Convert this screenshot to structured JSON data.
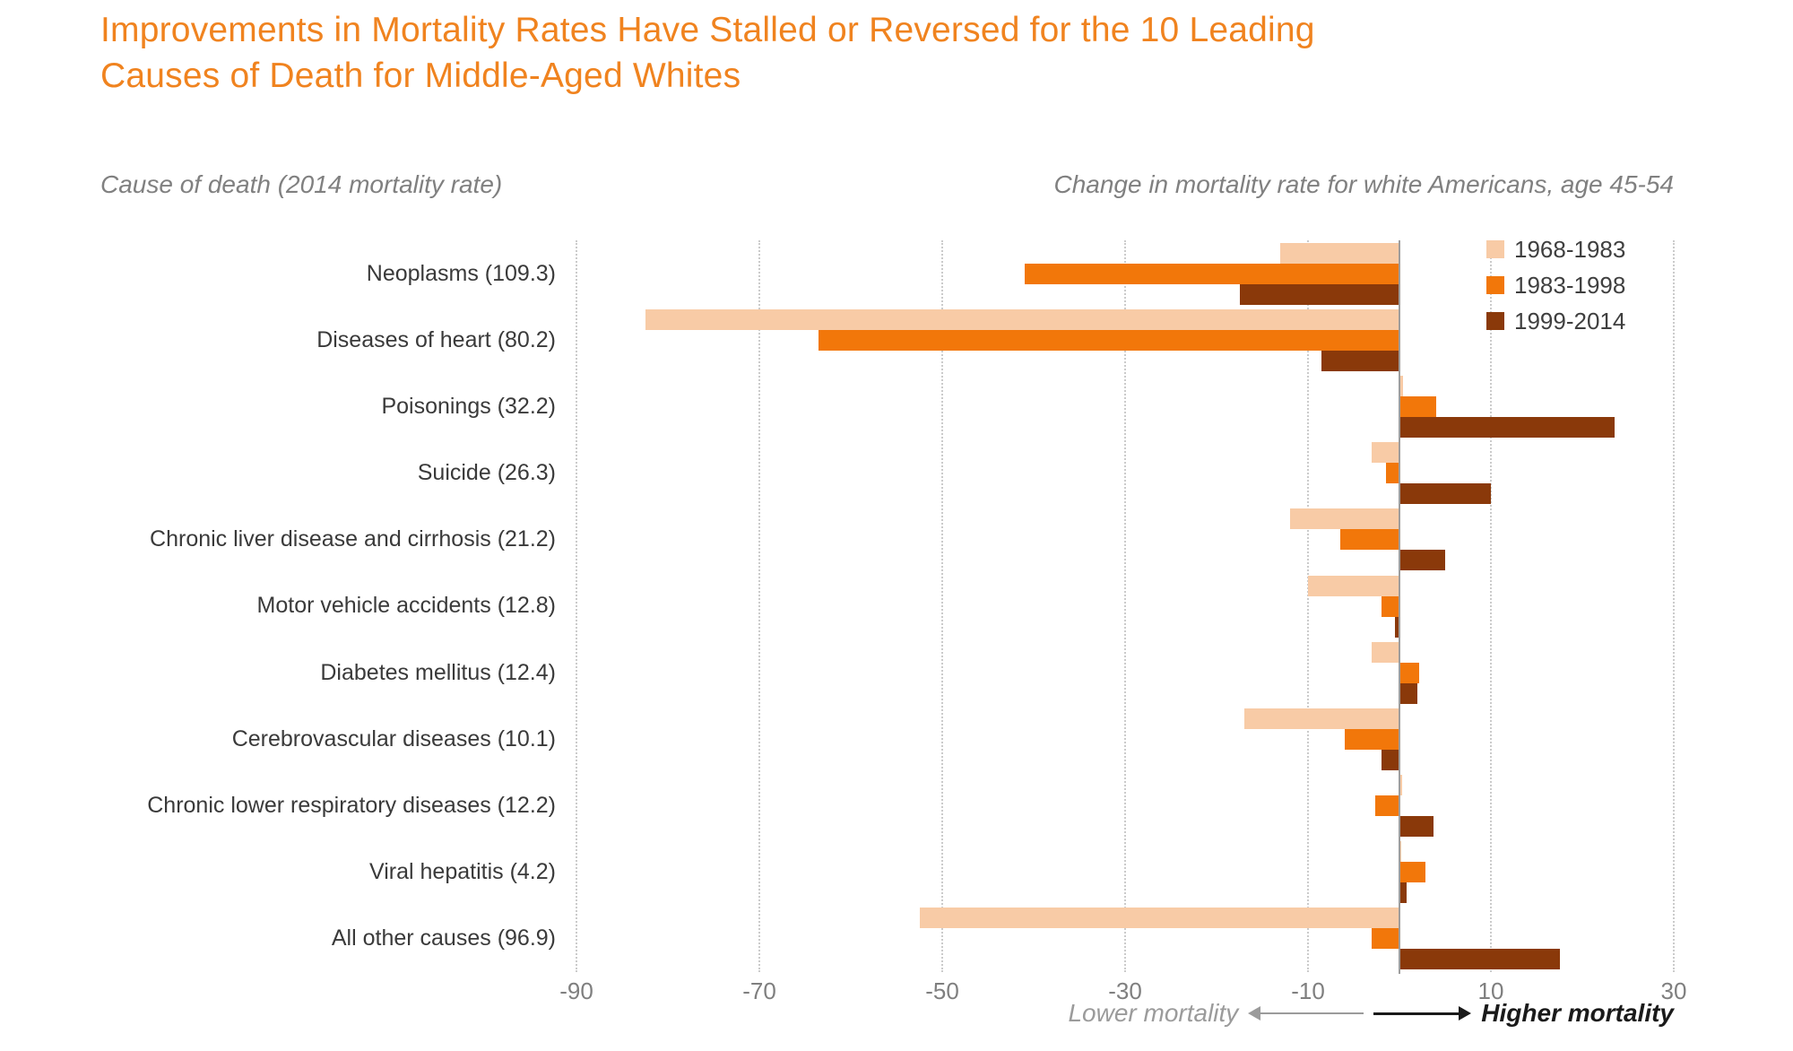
{
  "title": "Improvements in Mortality Rates Have Stalled or Reversed for the 10 Leading Causes of Death for Middle-Aged Whites",
  "axis_titles": {
    "left": "Cause of death (2014 mortality rate)",
    "right": "Change in mortality rate for white Americans, age 45-54"
  },
  "footer": {
    "lower": "Lower mortality",
    "higher": "Higher mortality"
  },
  "colors": {
    "title": "#F0831F",
    "gridline": "#CBCBCB",
    "zero_line": "#9E9E9E",
    "tick_label": "#7F7F7F",
    "category_label": "#3A3A3A",
    "subtitle": "#808080"
  },
  "chart_data": {
    "type": "bar",
    "orientation": "horizontal",
    "title": "Improvements in Mortality Rates Have Stalled or Reversed for the 10 Leading Causes of Death for Middle-Aged Whites",
    "xlabel": "Change in mortality rate for white Americans, age 45-54",
    "ylabel": "Cause of death (2014 mortality rate)",
    "xlim": [
      -90,
      30
    ],
    "xticks": [
      -90,
      -70,
      -50,
      -30,
      -10,
      10,
      30
    ],
    "grid": "dotted-vertical",
    "legend_position": "top-right",
    "categories": [
      "Neoplasms (109.3)",
      "Diseases of heart (80.2)",
      "Poisonings (32.2)",
      "Suicide (26.3)",
      "Chronic liver disease and cirrhosis (21.2)",
      "Motor vehicle accidents (12.8)",
      "Diabetes mellitus (12.4)",
      "Cerebrovascular diseases (10.1)",
      "Chronic lower respiratory diseases (12.2)",
      "Viral hepatitis (4.2)",
      "All other causes (96.9)"
    ],
    "series": [
      {
        "name": "1968-1983",
        "color": "#F8CBA6",
        "values": [
          -13,
          -82.5,
          0.4,
          -3,
          -12,
          -10,
          -3,
          -17,
          0.3,
          0.2,
          -52.5
        ]
      },
      {
        "name": "1983-1998",
        "color": "#F2770A",
        "values": [
          -41,
          -63.5,
          4,
          -1.5,
          -6.5,
          -2,
          2.2,
          -6,
          -2.6,
          2.8,
          -3
        ]
      },
      {
        "name": "1999-2014",
        "color": "#8A390A",
        "values": [
          -17.5,
          -8.5,
          23.5,
          10,
          5,
          -0.5,
          2,
          -2,
          3.7,
          0.8,
          17.5
        ]
      }
    ]
  }
}
